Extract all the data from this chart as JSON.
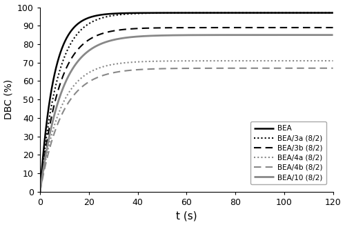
{
  "title": "",
  "xlabel": "t (s)",
  "ylabel": "DBC (%)",
  "xlim": [
    0,
    120
  ],
  "ylim": [
    0,
    100
  ],
  "xticks": [
    0,
    20,
    40,
    60,
    80,
    100,
    120
  ],
  "yticks": [
    0,
    10,
    20,
    30,
    40,
    50,
    60,
    70,
    80,
    90,
    100
  ],
  "curves": [
    {
      "label": "BEA",
      "color": "#000000",
      "linestyle": "solid",
      "linewidth": 1.8,
      "plateau": 97.0,
      "rate": 0.18
    },
    {
      "label": "BEA/3a (8/2)",
      "color": "#000000",
      "linestyle": "densely_dotted",
      "linewidth": 1.5,
      "plateau": 97.0,
      "rate": 0.14
    },
    {
      "label": "BEA/3b (8/2)",
      "color": "#000000",
      "linestyle": "dashed",
      "linewidth": 1.5,
      "plateau": 89.0,
      "rate": 0.13
    },
    {
      "label": "BEA/4a (8/2)",
      "color": "#888888",
      "linestyle": "densely_dotted",
      "linewidth": 1.5,
      "plateau": 71.0,
      "rate": 0.12
    },
    {
      "label": "BEA/4b (8/2)",
      "color": "#888888",
      "linestyle": "dashed",
      "linewidth": 1.5,
      "plateau": 67.0,
      "rate": 0.11
    },
    {
      "label": "BEA/10 (8/2)",
      "color": "#888888",
      "linestyle": "solid",
      "linewidth": 2.0,
      "plateau": 85.0,
      "rate": 0.115
    }
  ],
  "figsize": [
    5.0,
    3.26
  ],
  "dpi": 100
}
